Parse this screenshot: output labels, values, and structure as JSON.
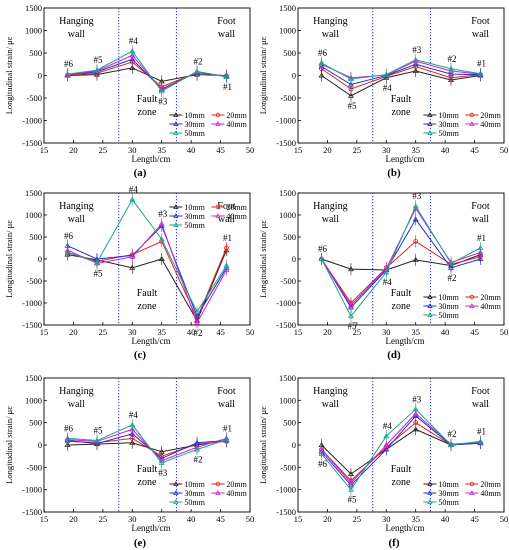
{
  "figure": {
    "ylabel": "Longitudinal strain/ με",
    "xlabel": "Length/cm"
  },
  "colors": {
    "10mm": "#222222",
    "20mm": "#e0261c",
    "30mm": "#1f2fd6",
    "40mm": "#d11fd1",
    "50mm": "#1aa38f",
    "boundary": "#2a2aee"
  },
  "chart_data": [
    {
      "panel_label": "(a)",
      "type": "line",
      "xlim": [
        15,
        50
      ],
      "ylim": [
        -1500,
        1500
      ],
      "xticks": [
        15,
        20,
        25,
        30,
        35,
        40,
        45,
        50
      ],
      "yticks": [
        -1500,
        -1000,
        -500,
        0,
        500,
        1000,
        1500
      ],
      "xlabel": "Length/cm",
      "ylabel": "Longitudinal strain/ με",
      "boundaries": [
        27.7,
        37.5
      ],
      "regions": {
        "left": "Hanging\nwall",
        "middle": "Fault\nzone",
        "right": "Foot\nwall"
      },
      "legend_position": "bottom-right",
      "x": [
        19,
        24,
        30,
        35,
        41,
        46
      ],
      "point_labels": [
        "#6",
        "#5",
        "#4",
        "#3",
        "#2",
        "#1"
      ],
      "series": [
        {
          "name": "10mm",
          "values": [
            0,
            20,
            170,
            -130,
            20,
            0
          ]
        },
        {
          "name": "20mm",
          "values": [
            10,
            50,
            300,
            -250,
            60,
            -10
          ]
        },
        {
          "name": "30mm",
          "values": [
            20,
            80,
            360,
            -300,
            70,
            -20
          ]
        },
        {
          "name": "40mm",
          "values": [
            20,
            100,
            450,
            -320,
            80,
            -20
          ]
        },
        {
          "name": "50mm",
          "values": [
            30,
            120,
            540,
            -350,
            90,
            -30
          ]
        }
      ]
    },
    {
      "panel_label": "(b)",
      "type": "line",
      "xlim": [
        15,
        50
      ],
      "ylim": [
        -1500,
        1500
      ],
      "xticks": [
        15,
        20,
        25,
        30,
        35,
        40,
        45,
        50
      ],
      "yticks": [
        -1500,
        -1000,
        -500,
        0,
        500,
        1000,
        1500
      ],
      "xlabel": "Length/cm",
      "ylabel": "Longitudinal strain/ με",
      "boundaries": [
        27.7,
        37.5
      ],
      "regions": {
        "left": "Hanging\nwall",
        "middle": "Fault\nzone",
        "right": "Foot\nwall"
      },
      "legend_position": "bottom-right",
      "x": [
        19,
        24,
        30,
        35,
        41,
        46
      ],
      "point_labels": [
        "#6",
        "#5",
        "#4",
        "#3",
        "#2",
        "#1"
      ],
      "series": [
        {
          "name": "10mm",
          "values": [
            0,
            -450,
            -50,
            100,
            -100,
            0
          ]
        },
        {
          "name": "20mm",
          "values": [
            150,
            -300,
            -20,
            200,
            -50,
            20
          ]
        },
        {
          "name": "30mm",
          "values": [
            200,
            -200,
            0,
            250,
            30,
            20
          ]
        },
        {
          "name": "40mm",
          "values": [
            250,
            -50,
            10,
            320,
            100,
            30
          ]
        },
        {
          "name": "50mm",
          "values": [
            280,
            -80,
            20,
            350,
            150,
            40
          ]
        }
      ]
    },
    {
      "panel_label": "(c)",
      "type": "line",
      "xlim": [
        15,
        50
      ],
      "ylim": [
        -1500,
        1500
      ],
      "xticks": [
        15,
        20,
        25,
        30,
        35,
        40,
        45,
        50
      ],
      "yticks": [
        -1500,
        -1000,
        -500,
        0,
        500,
        1000,
        1500
      ],
      "xlabel": "Length/cm",
      "ylabel": "Longitudinal strain/ με",
      "boundaries": [
        27.7,
        37.5
      ],
      "regions": {
        "left": "Hanging\nwall",
        "middle": "Fault\nzone",
        "right": "Foot\nwall"
      },
      "legend_position": "top-right",
      "x": [
        19,
        24,
        30,
        35,
        41,
        46
      ],
      "point_labels": [
        "#6",
        "#5",
        "#4",
        "#3",
        "#2",
        "#1"
      ],
      "series": [
        {
          "name": "10mm",
          "values": [
            100,
            -20,
            -200,
            0,
            -1400,
            200
          ]
        },
        {
          "name": "20mm",
          "values": [
            150,
            -50,
            100,
            400,
            -1350,
            250
          ]
        },
        {
          "name": "30mm",
          "values": [
            300,
            0,
            80,
            750,
            -1300,
            -200
          ]
        },
        {
          "name": "40mm",
          "values": [
            200,
            -100,
            50,
            800,
            -1450,
            -250
          ]
        },
        {
          "name": "50mm",
          "values": [
            150,
            -80,
            1350,
            450,
            -1200,
            -150
          ]
        }
      ]
    },
    {
      "panel_label": "(d)",
      "type": "line",
      "xlim": [
        15,
        50
      ],
      "ylim": [
        -1500,
        1500
      ],
      "xticks": [
        15,
        20,
        25,
        30,
        35,
        40,
        45,
        50
      ],
      "yticks": [
        -1500,
        -1000,
        -500,
        0,
        500,
        1000,
        1500
      ],
      "xlabel": "Length/cm",
      "ylabel": "Longitudinal strain/ με",
      "boundaries": [
        27.7,
        37.5
      ],
      "regions": {
        "left": "Hanging\nwall",
        "middle": "Fault\nzone",
        "right": "Foot\nwall"
      },
      "legend_position": "bottom-right",
      "x": [
        19,
        24,
        30,
        35,
        41,
        46
      ],
      "point_labels": [
        "#6",
        "#5",
        "#4",
        "#3",
        "#2",
        "#1"
      ],
      "series": [
        {
          "name": "10mm",
          "values": [
            0,
            -230,
            -250,
            -20,
            -150,
            100
          ]
        },
        {
          "name": "20mm",
          "values": [
            0,
            -1000,
            -200,
            400,
            -120,
            50
          ]
        },
        {
          "name": "30mm",
          "values": [
            0,
            -1100,
            -250,
            900,
            -200,
            0
          ]
        },
        {
          "name": "40mm",
          "values": [
            0,
            -1050,
            -220,
            1150,
            -80,
            150
          ]
        },
        {
          "name": "50mm",
          "values": [
            0,
            -1300,
            -300,
            1200,
            -100,
            250
          ]
        }
      ]
    },
    {
      "panel_label": "(e)",
      "type": "line",
      "xlim": [
        15,
        50
      ],
      "ylim": [
        -1500,
        1500
      ],
      "xticks": [
        15,
        20,
        25,
        30,
        35,
        40,
        45,
        50
      ],
      "yticks": [
        -1500,
        -1000,
        -500,
        0,
        500,
        1000,
        1500
      ],
      "xlabel": "Length/cm",
      "ylabel": "Longitudinal strain/ με",
      "boundaries": [
        27.7,
        37.5
      ],
      "regions": {
        "left": "Hanging\nwall",
        "middle": "Fault\nzone",
        "right": "Foot\nwall"
      },
      "legend_position": "bottom-right",
      "x": [
        19,
        24,
        30,
        35,
        41,
        46
      ],
      "point_labels": [
        "#6",
        "#5",
        "#4",
        "#3",
        "#2",
        "#1"
      ],
      "series": [
        {
          "name": "10mm",
          "values": [
            0,
            20,
            50,
            -150,
            0,
            100
          ]
        },
        {
          "name": "20mm",
          "values": [
            80,
            50,
            150,
            -250,
            20,
            80
          ]
        },
        {
          "name": "30mm",
          "values": [
            100,
            30,
            250,
            -300,
            50,
            100
          ]
        },
        {
          "name": "40mm",
          "values": [
            120,
            80,
            350,
            -350,
            -50,
            150
          ]
        },
        {
          "name": "50mm",
          "values": [
            150,
            100,
            450,
            -400,
            -100,
            120
          ]
        }
      ]
    },
    {
      "panel_label": "(f)",
      "type": "line",
      "xlim": [
        15,
        50
      ],
      "ylim": [
        -1500,
        1500
      ],
      "xticks": [
        15,
        20,
        25,
        30,
        35,
        40,
        45,
        50
      ],
      "yticks": [
        -1500,
        -1000,
        -500,
        0,
        500,
        1000,
        1500
      ],
      "xlabel": "Length/cm",
      "ylabel": "Longitudinal strain/ με",
      "boundaries": [
        27.7,
        37.5
      ],
      "regions": {
        "left": "Hanging\nwall",
        "middle": "Fault\nzone",
        "right": "Foot\nwall"
      },
      "legend_position": "bottom-right",
      "x": [
        19,
        24,
        30,
        35,
        41,
        46
      ],
      "point_labels": [
        "#6",
        "#5",
        "#4",
        "#3",
        "#2",
        "#1"
      ],
      "series": [
        {
          "name": "10mm",
          "values": [
            0,
            -650,
            -100,
            350,
            0,
            50
          ]
        },
        {
          "name": "20mm",
          "values": [
            -100,
            -800,
            -50,
            500,
            0,
            50
          ]
        },
        {
          "name": "30mm",
          "values": [
            -150,
            -900,
            -100,
            650,
            0,
            40
          ]
        },
        {
          "name": "40mm",
          "values": [
            -100,
            -850,
            0,
            700,
            20,
            60
          ]
        },
        {
          "name": "50mm",
          "values": [
            -200,
            -1000,
            200,
            800,
            0,
            80
          ]
        }
      ]
    }
  ]
}
